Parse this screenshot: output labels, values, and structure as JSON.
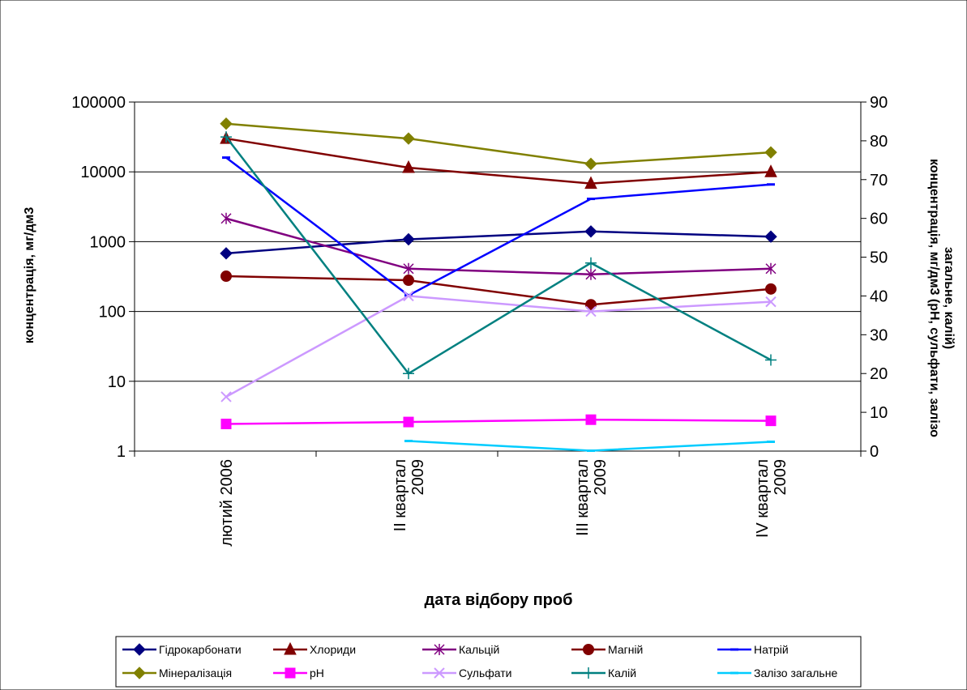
{
  "chart_data": {
    "type": "line",
    "title": "",
    "xlabel": "дата відбору проб",
    "ylabel_left": "концентрація, мг/дм3",
    "ylabel_right_lines": [
      "концентрація, мг/дм3 (pH, сульфати, залізо",
      "загальне, калій)"
    ],
    "left_axis": {
      "scale": "log",
      "ylim": [
        1,
        100000
      ],
      "ticks": [
        "1",
        "10",
        "100",
        "1000",
        "10000",
        "100000"
      ]
    },
    "right_axis": {
      "scale": "linear",
      "ylim": [
        0,
        90
      ],
      "ticks": [
        "0",
        "10",
        "20",
        "30",
        "40",
        "50",
        "60",
        "70",
        "80",
        "90"
      ]
    },
    "gridlines": true,
    "legend_position": "bottom",
    "categories": [
      [
        "лютий 2006"
      ],
      [
        "ІІ квартал",
        "2009"
      ],
      [
        "ІІІ квартал",
        "2009"
      ],
      [
        "IV квартал",
        "2009"
      ]
    ],
    "series": [
      {
        "name": "Гідрокарбонати",
        "axis": "left",
        "color": "#000080",
        "marker": "diamond",
        "values": [
          680,
          1080,
          1400,
          1180
        ]
      },
      {
        "name": "Хлориди",
        "axis": "left",
        "color": "#800000",
        "marker": "triangle",
        "values": [
          30000,
          11500,
          6800,
          10000
        ]
      },
      {
        "name": "Кальцій",
        "axis": "left",
        "color": "#800080",
        "marker": "asterisk",
        "values": [
          2150,
          410,
          340,
          410
        ]
      },
      {
        "name": "Магній",
        "axis": "left",
        "color": "#800000",
        "marker": "circle",
        "values": [
          320,
          280,
          125,
          210
        ]
      },
      {
        "name": "Натрій",
        "axis": "left",
        "color": "#0000ff",
        "marker": "dash",
        "values": [
          16000,
          170,
          4100,
          6600
        ]
      },
      {
        "name": "Мінералізація",
        "axis": "left",
        "color": "#808000",
        "marker": "diamond",
        "values": [
          49000,
          30000,
          13000,
          19000
        ]
      },
      {
        "name": "pH",
        "axis": "right",
        "color": "#ff00ff",
        "marker": "square",
        "values": [
          7.0,
          7.5,
          8.1,
          7.8
        ]
      },
      {
        "name": "Сульфати",
        "axis": "right",
        "color": "#cc99ff",
        "marker": "x",
        "values": [
          14,
          40,
          36,
          38.5
        ]
      },
      {
        "name": "Калій",
        "axis": "right",
        "color": "#008080",
        "marker": "plus",
        "values": [
          81,
          20,
          48.5,
          23.5
        ]
      },
      {
        "name": "Залізо загальне",
        "axis": "right",
        "color": "#00ccff",
        "marker": "dash",
        "values": [
          null,
          2.6,
          0.1,
          2.4
        ]
      }
    ]
  }
}
